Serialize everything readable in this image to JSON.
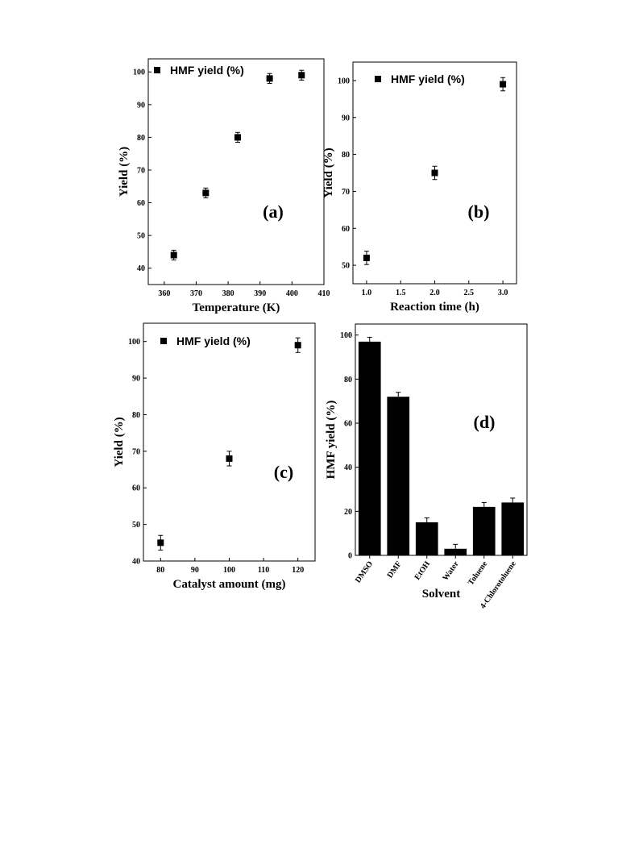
{
  "chart_data": [
    {
      "panel": "(a)",
      "type": "scatter",
      "xlabel": "Temperature (K)",
      "ylabel": "Yield (%)",
      "xlim": [
        355,
        410
      ],
      "ylim": [
        35,
        104
      ],
      "xticks": [
        360,
        370,
        380,
        390,
        400,
        410
      ],
      "yticks": [
        40,
        50,
        60,
        70,
        80,
        90,
        100
      ],
      "series": [
        {
          "name": "HMF yield (%)",
          "x": [
            363,
            373,
            383,
            393,
            403
          ],
          "y": [
            44,
            63,
            80,
            98,
            99
          ],
          "err": [
            1.5,
            1.5,
            1.5,
            1.5,
            1.5
          ]
        }
      ],
      "legend": "top-left",
      "annotation": "(a)",
      "grid": false
    },
    {
      "panel": "(b)",
      "type": "scatter",
      "xlabel": "Reaction time (h)",
      "ylabel": "Yield (%)",
      "xlim": [
        0.8,
        3.2
      ],
      "ylim": [
        45,
        105
      ],
      "xticks": [
        "1.0",
        "1.5",
        "2.0",
        "2.5",
        "3.0"
      ],
      "yticks": [
        50,
        60,
        70,
        80,
        90,
        100
      ],
      "series": [
        {
          "name": "HMF yield (%)",
          "x": [
            1.0,
            2.0,
            3.0
          ],
          "y": [
            52,
            75,
            99
          ],
          "err": [
            1.8,
            1.8,
            1.8
          ]
        }
      ],
      "legend": "top-left",
      "annotation": "(b)",
      "grid": false
    },
    {
      "panel": "(c)",
      "type": "scatter",
      "xlabel": "Catalyst amount (mg)",
      "ylabel": "Yield (%)",
      "xlim": [
        75,
        125
      ],
      "ylim": [
        40,
        105
      ],
      "xticks": [
        80,
        90,
        100,
        110,
        120
      ],
      "yticks": [
        40,
        50,
        60,
        70,
        80,
        90,
        100
      ],
      "series": [
        {
          "name": "HMF yield (%)",
          "x": [
            80,
            100,
            120
          ],
          "y": [
            45,
            68,
            99
          ],
          "err": [
            2,
            2,
            2
          ]
        }
      ],
      "legend": "top-left",
      "annotation": "(c)",
      "grid": false
    },
    {
      "panel": "(d)",
      "type": "bar",
      "xlabel": "Solvent",
      "ylabel": "HMF yield (%)",
      "ylim": [
        0,
        105
      ],
      "yticks": [
        0,
        20,
        40,
        60,
        80,
        100
      ],
      "categories": [
        "DMSO",
        "DMF",
        "EtOH",
        "Water",
        "Toluene",
        "4-Chlorotoluene"
      ],
      "values": [
        97,
        72,
        15,
        3,
        22,
        24
      ],
      "err": [
        2,
        2,
        2,
        2,
        2,
        2
      ],
      "annotation": "(d)",
      "grid": false
    }
  ],
  "colors": {
    "ink": "#000000",
    "background": "#ffffff"
  }
}
